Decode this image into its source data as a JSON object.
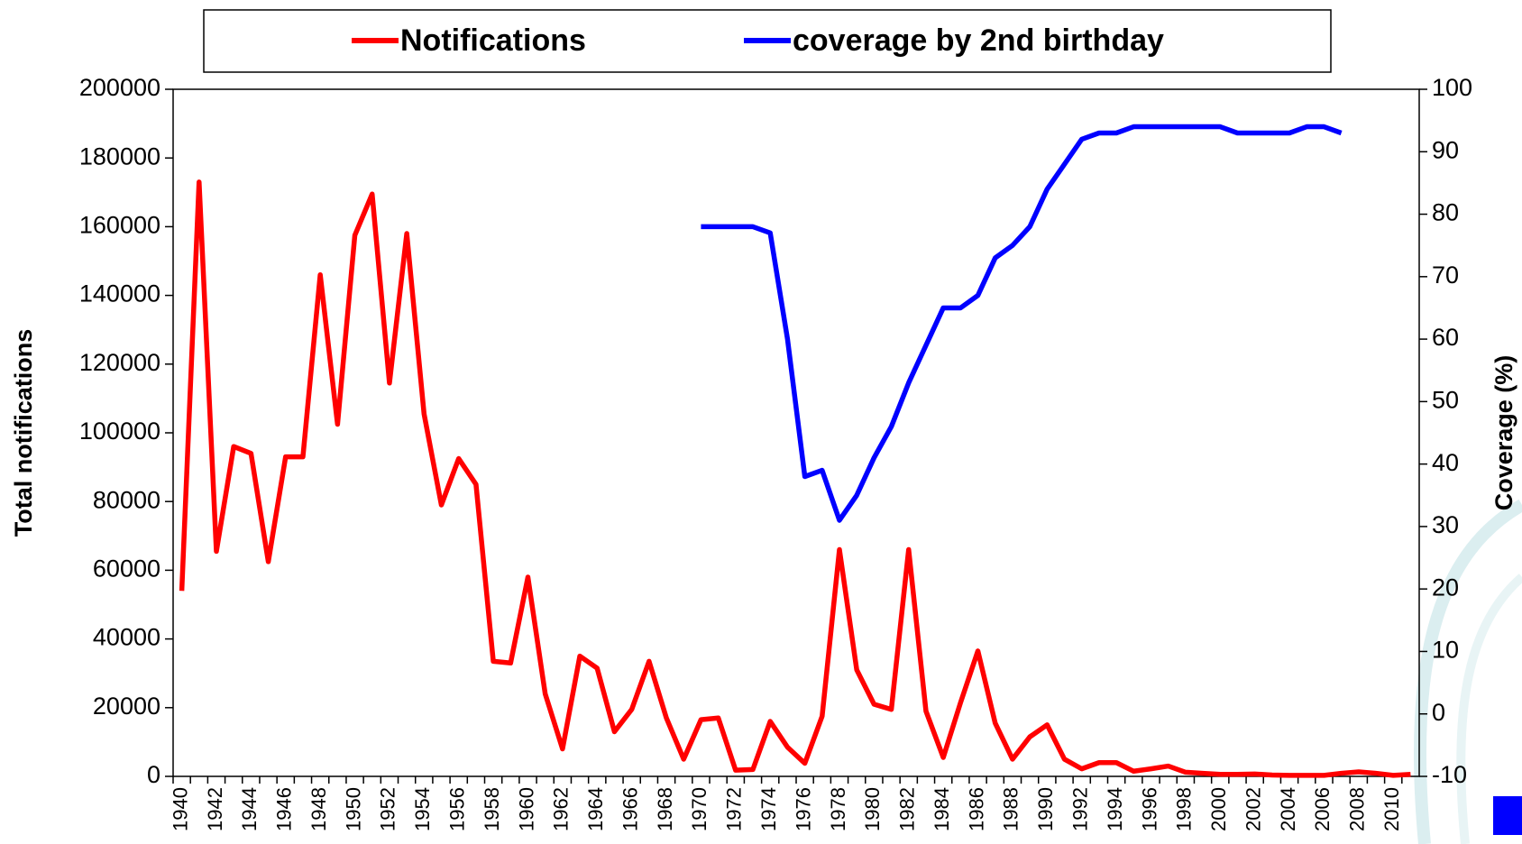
{
  "chart_data": {
    "type": "line",
    "y_label": "Total notifications",
    "y2_label": "Coverage (%)",
    "categories": [
      "1940",
      null,
      "1942",
      null,
      "1944",
      null,
      "1946",
      null,
      "1948",
      null,
      "1950",
      null,
      "1952",
      null,
      "1954",
      null,
      "1956",
      null,
      "1958",
      null,
      "1960",
      null,
      "1962",
      null,
      "1964",
      null,
      "1966",
      null,
      "1968",
      null,
      "1970",
      null,
      "1972",
      null,
      "1974",
      null,
      "1976",
      null,
      "1978",
      null,
      "1980",
      null,
      "1982",
      null,
      "1984",
      null,
      "1986",
      null,
      "1988",
      null,
      "1990",
      null,
      "1992",
      null,
      "1994",
      null,
      "1996",
      null,
      "1998",
      null,
      "2000",
      null,
      "2002",
      null,
      "2004",
      null,
      "2006",
      null,
      "2008",
      null,
      "2010",
      null
    ],
    "series": [
      {
        "name": "Notifications",
        "color": "#ff0000",
        "axis": "y",
        "values": [
          54000,
          173000,
          65500,
          96000,
          94000,
          62500,
          93000,
          93000,
          146000,
          102500,
          157500,
          169500,
          114500,
          158000,
          105500,
          79000,
          92500,
          85000,
          33500,
          33000,
          58000,
          24000,
          8000,
          35000,
          31500,
          13000,
          19500,
          33500,
          17000,
          5000,
          16500,
          17000,
          1800,
          2000,
          16000,
          8500,
          3800,
          17500,
          66000,
          31000,
          21000,
          19500,
          66000,
          19000,
          5500,
          21500,
          36500,
          15500,
          5000,
          11500,
          15000,
          5000,
          2200,
          4000,
          4000,
          1500,
          2200,
          3000,
          1200,
          900,
          600,
          600,
          700,
          400,
          300,
          300,
          300,
          900,
          1300,
          900,
          300,
          600
        ]
      },
      {
        "name": "coverage by 2nd birthday",
        "color": "#0000ff",
        "axis": "y2",
        "values": [
          null,
          null,
          null,
          null,
          null,
          null,
          null,
          null,
          null,
          null,
          null,
          null,
          null,
          null,
          null,
          null,
          null,
          null,
          null,
          null,
          null,
          null,
          null,
          null,
          null,
          null,
          null,
          null,
          null,
          null,
          78,
          78,
          78,
          78,
          77,
          60,
          38,
          39,
          31,
          35,
          41,
          46,
          53,
          59,
          65,
          65,
          67,
          73,
          75,
          78,
          84,
          88,
          92,
          93,
          93,
          94,
          94,
          94,
          94,
          94,
          94,
          93,
          93,
          93,
          93,
          94,
          94,
          93,
          null,
          null,
          null,
          null
        ]
      }
    ],
    "ylim": [
      0,
      200000
    ],
    "yticks": [
      0,
      20000,
      40000,
      60000,
      80000,
      100000,
      120000,
      140000,
      160000,
      180000,
      200000
    ],
    "y2lim": [
      -10,
      100
    ],
    "y2ticks": [
      -10,
      0,
      10,
      20,
      30,
      40,
      50,
      60,
      70,
      80,
      90,
      100
    ],
    "legend": "top",
    "grid": false
  }
}
